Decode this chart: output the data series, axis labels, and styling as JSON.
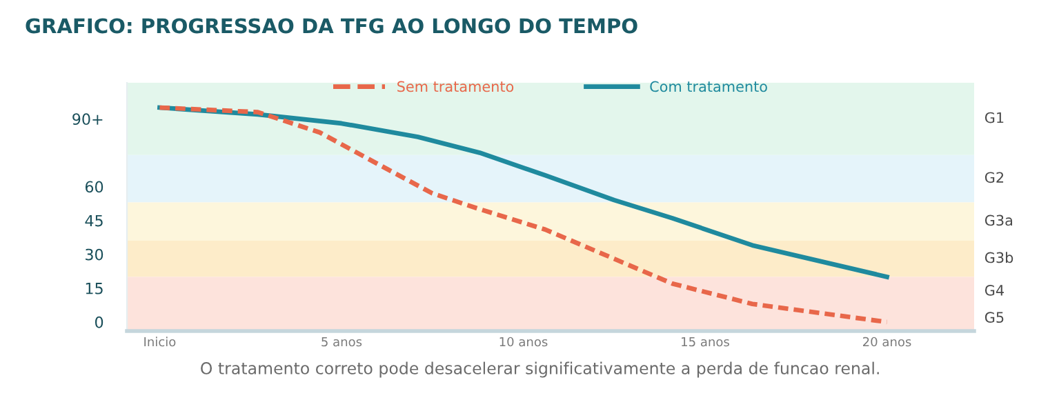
{
  "chart_data": {
    "type": "line",
    "title": "GRAFICO: PROGRESSAO DA TFG AO LONGO DO TEMPO",
    "annotations": [
      "O tratamento correto pode desacelerar significativamente a perda de funcao renal."
    ],
    "series": [
      {
        "name": "Sem tratamento",
        "color": "#e8674a",
        "line_style": "dashed",
        "x": [
          0,
          2.7,
          4.4,
          6,
          7.5,
          8.8,
          10.6,
          12.5,
          14.1,
          16.3,
          20
        ],
        "values": [
          95,
          93,
          84,
          70,
          57,
          50,
          41,
          28,
          17,
          8,
          0
        ]
      },
      {
        "name": "Com tratamento",
        "color": "#1f8a9e",
        "line_style": "solid",
        "x": [
          0,
          2.7,
          5,
          7.1,
          8.8,
          10.6,
          12.5,
          14.1,
          16.3,
          20
        ],
        "values": [
          95,
          92,
          88,
          82,
          75,
          65,
          54,
          46,
          34,
          20
        ]
      }
    ],
    "xlim": [
      -0.9,
      22.4
    ],
    "xticks": [
      {
        "value": 0,
        "label": "Inicio"
      },
      {
        "value": 5,
        "label": "5 anos"
      },
      {
        "value": 10,
        "label": "10 anos"
      },
      {
        "value": 15,
        "label": "15 anos"
      },
      {
        "value": 20,
        "label": "20 anos"
      }
    ],
    "ylim": [
      -4,
      106
    ],
    "yticks": [
      0,
      15,
      30,
      45,
      60,
      {
        "value": 90,
        "label": "90+"
      }
    ],
    "bands": [
      {
        "axis": "y",
        "from": 74,
        "to": 106,
        "label": "G1",
        "color": "#e3f6ec"
      },
      {
        "axis": "y",
        "from": 53,
        "to": 74,
        "label": "G2",
        "color": "#e5f4fa"
      },
      {
        "axis": "y",
        "from": 36,
        "to": 53,
        "label": "G3a",
        "color": "#fdf6dc"
      },
      {
        "axis": "y",
        "from": 20,
        "to": 36,
        "label": "G3b",
        "color": "#fdecc9"
      },
      {
        "axis": "y",
        "from": 7,
        "to": 20,
        "label": "G4",
        "color": "#fde3dc"
      },
      {
        "axis": "y",
        "from": -4,
        "to": 7,
        "label": "G5",
        "color": "#fde3dc"
      }
    ],
    "grid": false,
    "legend": "top",
    "marker": "none"
  }
}
